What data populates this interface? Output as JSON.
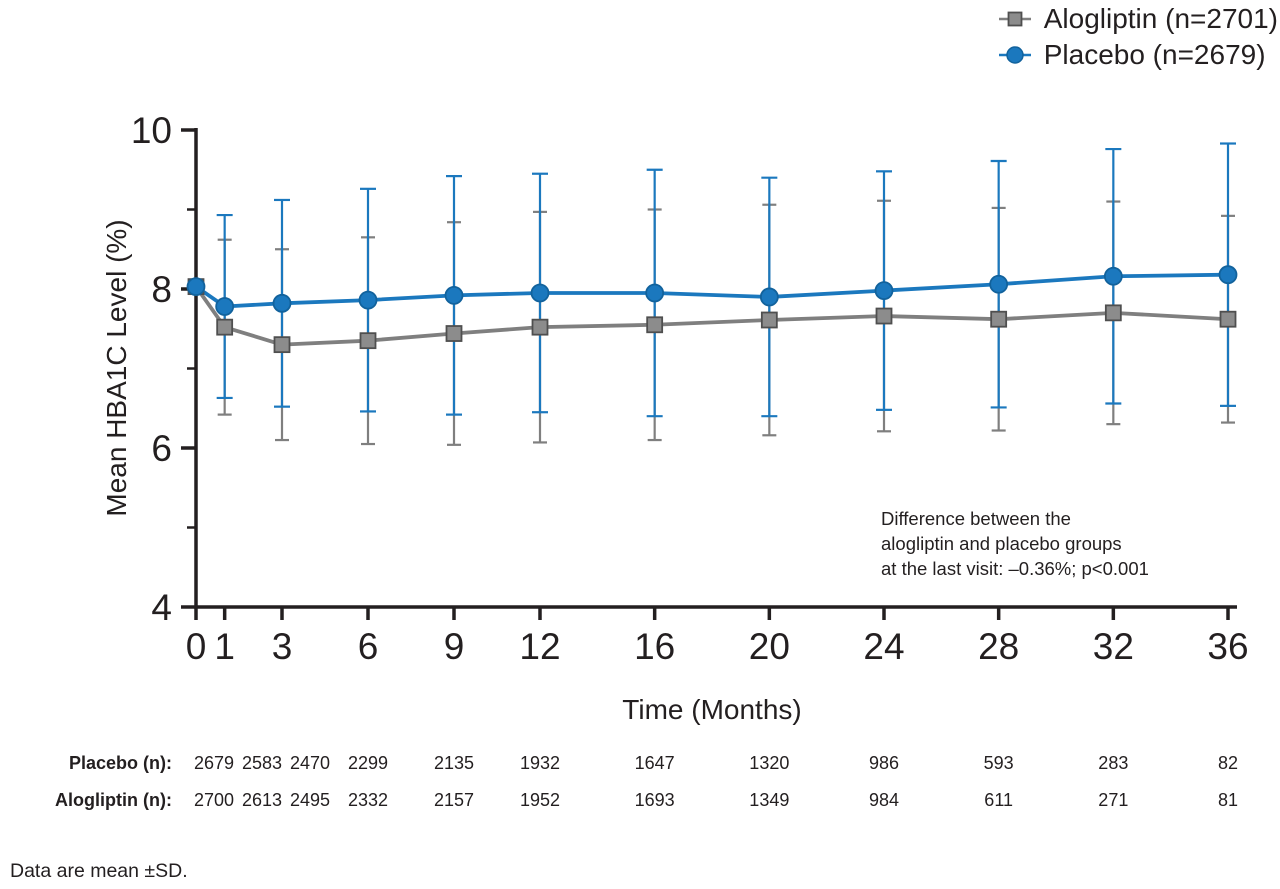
{
  "chart_data": {
    "type": "line",
    "title": "",
    "xlabel": "Time (Months)",
    "ylabel": "Mean HBA1C Level (%)",
    "xlim": [
      0,
      36
    ],
    "ylim": [
      4,
      10
    ],
    "x_ticks": [
      0,
      1,
      3,
      6,
      9,
      12,
      16,
      20,
      24,
      28,
      32,
      36
    ],
    "y_ticks": [
      4,
      6,
      8,
      10
    ],
    "y_minor_ticks": [
      5,
      7,
      9
    ],
    "grid": "off",
    "legend_position": "top-right",
    "x": [
      0,
      1,
      3,
      6,
      9,
      12,
      16,
      20,
      24,
      28,
      32,
      36
    ],
    "series": [
      {
        "id": "alogliptin",
        "name": "Alogliptin (n=2701)",
        "marker": "square",
        "color": "#7f7f7f",
        "marker_fill": "#8c8c8c",
        "marker_stroke": "#4f4f4f",
        "values": [
          8.03,
          7.52,
          7.3,
          7.35,
          7.44,
          7.52,
          7.55,
          7.61,
          7.66,
          7.62,
          7.7,
          7.62
        ],
        "sd": [
          null,
          1.1,
          1.2,
          1.3,
          1.4,
          1.45,
          1.45,
          1.45,
          1.45,
          1.4,
          1.4,
          1.3
        ]
      },
      {
        "id": "placebo",
        "name": "Placebo (n=2679)",
        "marker": "circle",
        "color": "#1b78be",
        "marker_fill": "#1b78be",
        "marker_stroke": "#12629c",
        "values": [
          8.03,
          7.78,
          7.82,
          7.86,
          7.92,
          7.95,
          7.95,
          7.9,
          7.98,
          8.06,
          8.16,
          8.18
        ],
        "sd": [
          null,
          1.15,
          1.3,
          1.4,
          1.5,
          1.5,
          1.55,
          1.5,
          1.5,
          1.55,
          1.6,
          1.65
        ]
      }
    ],
    "annotation": [
      "Difference between the",
      "alogliptin and placebo groups",
      "at the last visit: –0.36%; p<0.001"
    ],
    "at_risk_table": {
      "rows": [
        {
          "label": "Placebo (n):",
          "values": [
            2679,
            2583,
            2470,
            2299,
            2135,
            1932,
            1647,
            1320,
            986,
            593,
            283,
            82
          ]
        },
        {
          "label": "Alogliptin (n):",
          "values": [
            2700,
            2613,
            2495,
            2332,
            2157,
            1952,
            1693,
            1349,
            984,
            611,
            271,
            81
          ]
        }
      ]
    },
    "footnote": "Data are mean ±SD.",
    "error_bars": "mean ± SD"
  }
}
